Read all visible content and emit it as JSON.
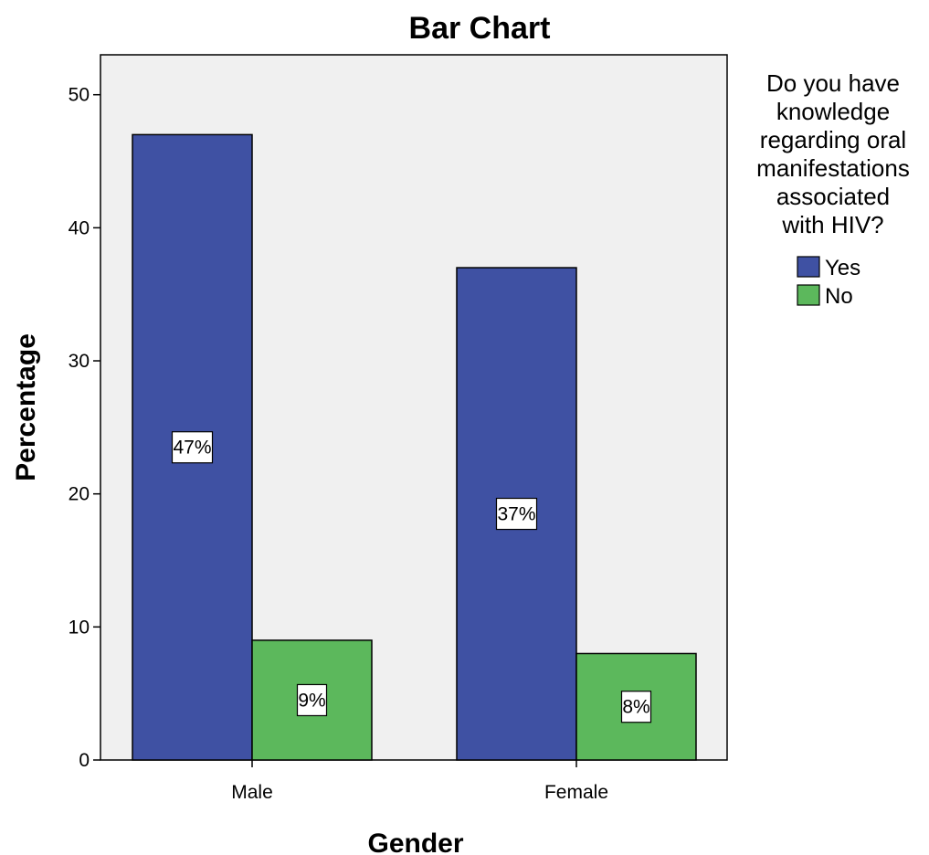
{
  "chart_data": {
    "type": "bar",
    "title": "Bar Chart",
    "xlabel": "Gender",
    "ylabel": "Percentage",
    "categories": [
      "Male",
      "Female"
    ],
    "ylim": [
      0,
      53
    ],
    "yticks": [
      0,
      10,
      20,
      30,
      40,
      50
    ],
    "grid": false,
    "legend": {
      "title": "Do you have knowledge regarding oral manifestations associated with HIV?",
      "title_lines": [
        "Do you have",
        "knowledge",
        "regarding oral",
        "manifestations",
        "associated",
        "with HIV?"
      ],
      "placement": "right"
    },
    "series": [
      {
        "name": "Yes",
        "color": "#3f51a3",
        "values": [
          47,
          37
        ],
        "labels": [
          "47%",
          "37%"
        ]
      },
      {
        "name": "No",
        "color": "#5cb85c",
        "values": [
          9,
          8
        ],
        "labels": [
          "9%",
          "8%"
        ]
      }
    ],
    "plot_background": "#f0f0f0"
  }
}
